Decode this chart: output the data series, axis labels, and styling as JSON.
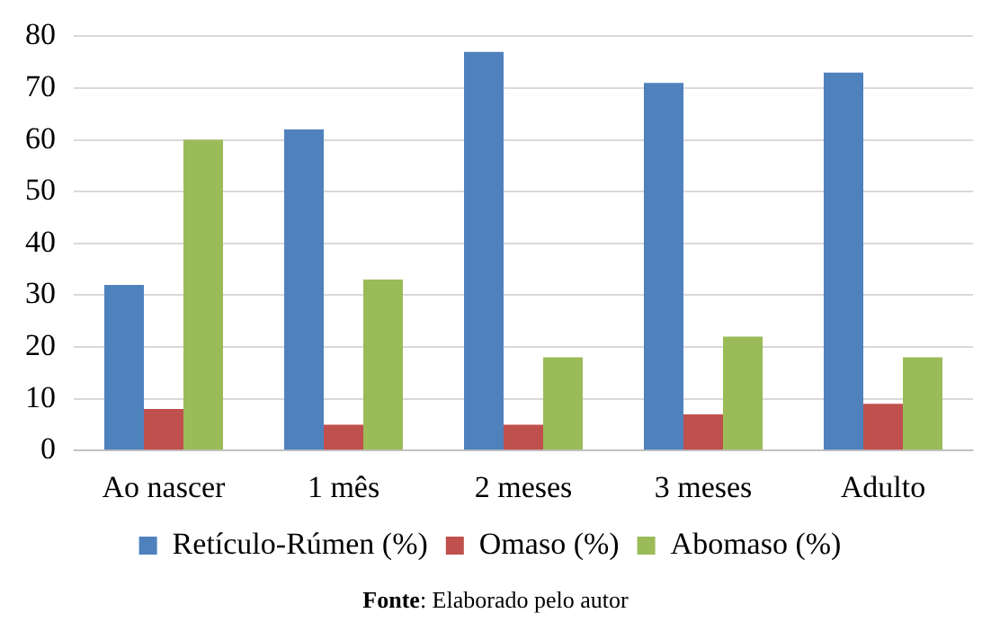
{
  "chart_data": {
    "type": "bar",
    "categories": [
      "Ao nascer",
      "1 mês",
      "2 meses",
      "3 meses",
      "Adulto"
    ],
    "series": [
      {
        "name": "Retículo-Rúmen (%)",
        "color": "#4f81bd",
        "values": [
          32,
          62,
          77,
          71,
          73
        ]
      },
      {
        "name": "Omaso (%)",
        "color": "#c0504d",
        "values": [
          8,
          5,
          5,
          7,
          9
        ]
      },
      {
        "name": "Abomaso (%)",
        "color": "#9bbb59",
        "values": [
          60,
          33,
          18,
          22,
          18
        ]
      }
    ],
    "ylim": [
      0,
      80
    ],
    "yticks": [
      0,
      10,
      20,
      30,
      40,
      50,
      60,
      70,
      80
    ],
    "grid": "y",
    "legend": "bottom",
    "annotations": [
      "Fonte: Elaborado pelo autor"
    ]
  }
}
